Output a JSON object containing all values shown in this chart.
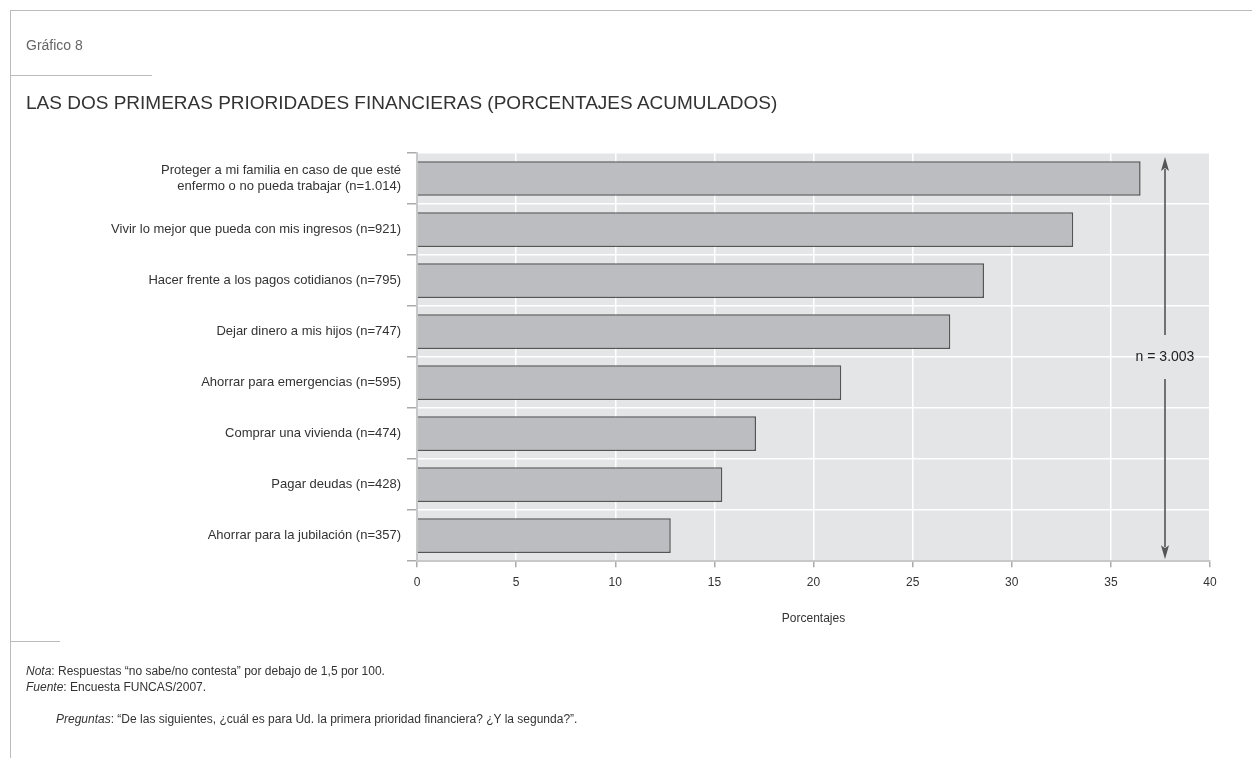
{
  "chart_data": {
    "type": "bar",
    "orientation": "horizontal",
    "title": "LAS DOS PRIMERAS PRIORIDADES FINANCIERAS (PORCENTAJES ACUMULADOS)",
    "xlabel": "Porcentajes",
    "categories": [
      "Proteger a mi familia en caso de que esté enfermo o no pueda trabajar (n=1.014)",
      "Vivir lo mejor que pueda con mis ingresos (n=921)",
      "Hacer frente a los pagos cotidianos (n=795)",
      "Dejar dinero a mis hijos (n=747)",
      "Ahorrar para emergencias (n=595)",
      "Comprar una vivienda (n=474)",
      "Pagar deudas (n=428)",
      "Ahorrar para la jubilación (n=357)"
    ],
    "values": [
      36.5,
      33.1,
      28.6,
      26.9,
      21.4,
      17.1,
      15.4,
      12.8
    ],
    "color": "#bcbdc1",
    "xlim": [
      0,
      40
    ],
    "xticks": [
      0,
      5,
      10,
      15,
      20,
      25,
      30,
      35,
      40
    ],
    "grid": true,
    "annotations": [
      "Gráfico 8",
      "n = 3.003",
      "Nota: Respuestas “no sabe/no contesta” por debajo de 1,5 por 100.",
      "Fuente: Encuesta FUNCAS/2007.",
      "Preguntas: “De las siguientes, ¿cuál es para Ud. la primera prioridad financiera? ¿Y la segunda?”."
    ]
  }
}
